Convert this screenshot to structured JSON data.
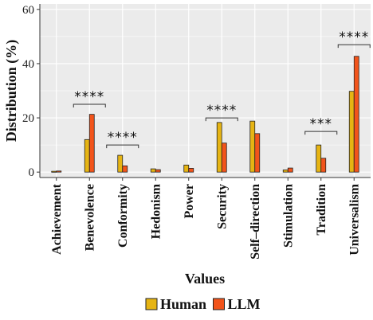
{
  "chart_data": {
    "type": "bar",
    "xlabel": "Values",
    "ylabel": "Distribution (%)",
    "ylim": [
      -2,
      62
    ],
    "yticks": [
      0,
      20,
      40,
      60
    ],
    "grid": true,
    "legend_position": "bottom",
    "categories": [
      "Achievement",
      "Benevolence",
      "Conformity",
      "Hedonism",
      "Power",
      "Security",
      "Self–direction",
      "Stimulation",
      "Tradition",
      "Universalism"
    ],
    "series": [
      {
        "name": "Human",
        "color": "#E6B413",
        "values": [
          0.3,
          12.0,
          6.2,
          1.2,
          2.6,
          18.3,
          18.8,
          0.8,
          10.0,
          29.8
        ]
      },
      {
        "name": "LLM",
        "color": "#F2541B",
        "values": [
          0.4,
          21.3,
          2.3,
          0.9,
          1.4,
          10.7,
          14.2,
          1.5,
          5.1,
          42.7
        ]
      }
    ],
    "significance": [
      {
        "category_index": 1,
        "label": "****",
        "bracket_y": 25
      },
      {
        "category_index": 2,
        "label": "****",
        "bracket_y": 10
      },
      {
        "category_index": 5,
        "label": "****",
        "bracket_y": 20
      },
      {
        "category_index": 8,
        "label": "***",
        "bracket_y": 15
      },
      {
        "category_index": 9,
        "label": "****",
        "bracket_y": 47
      }
    ]
  }
}
